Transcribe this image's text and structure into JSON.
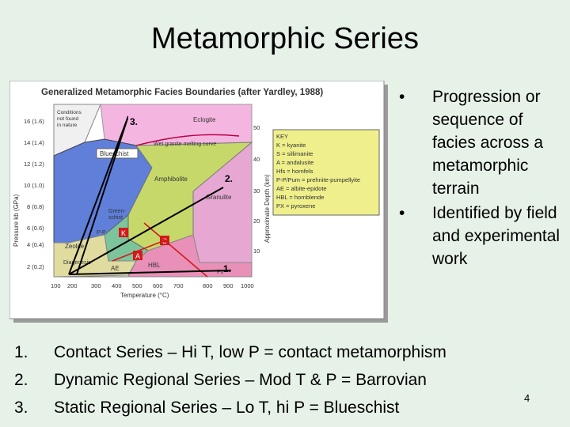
{
  "slide": {
    "title": "Metamorphic Series",
    "page_number": "4"
  },
  "bullets": [
    "Progression or sequence of facies across a metamorphic terrain",
    "Identified by field and experimental work"
  ],
  "series_list": [
    {
      "num": "1.",
      "text": "Contact Series – Hi T, low P = contact metamorphism"
    },
    {
      "num": "2.",
      "text": "Dynamic Regional Series – Mod T & P = Barrovian"
    },
    {
      "num": "3.",
      "text": "Static Regional Series – Lo T, hi P = Blueschist"
    }
  ],
  "diagram": {
    "title": "Generalized Metamorphic Facies Boundaries (after Yardley, 1988)",
    "y_axis_left": "Pressure kb (GPa)",
    "y_axis_right": "Approximate Depth (km)",
    "x_axis": "Temperature (°C)",
    "x_ticks": [
      "100",
      "200",
      "300",
      "400",
      "500",
      "600",
      "700",
      "800",
      "900",
      "1000"
    ],
    "y_ticks": [
      "2 (0.2)",
      "4 (0.4)",
      "6 (0.6)",
      "8 (0.8)",
      "10 (1.0)",
      "12 (1.2)",
      "14 (1.4)",
      "16 (1.6)"
    ],
    "depth_ticks": [
      "10",
      "20",
      "30",
      "40",
      "50"
    ],
    "facies": {
      "conditions": "Conditions not found in nature",
      "eclogite": "Eclogite",
      "wet_granite": "Wet granite melting curve",
      "blueschist": "Blueschist",
      "amphibolite": "Amphibolite",
      "granulite": "Granulite",
      "greenschist": "Green- schist",
      "pp": "P-P",
      "zeolite": "Zeolite",
      "diagenesis": "Diagenesis",
      "ae": "AE",
      "hbl": "HBL",
      "px": "Px"
    },
    "series_markers": [
      "1.",
      "2.",
      "3."
    ],
    "key": {
      "title": "KEY",
      "lines": [
        "K = kyanite",
        "S = sillimanite",
        "A = andalusite",
        "Hfs = hornfels",
        "P-P/Pum = prehnite-pumpellyite",
        "AE = albite-epidote",
        "HBL = hornblende",
        "PX = pyroxene"
      ]
    },
    "colors": {
      "panel": "#ffffff",
      "eclogite": "#f4b6e0",
      "blueschist": "#5f7fd9",
      "amphibolite": "#c6d86a",
      "granulite": "#e6a8d2",
      "greenschist": "#7cc49c",
      "zeolite": "#e0dca0",
      "contact": "#e890b8",
      "series_line": "#d11a1a",
      "key_bg": "#efef8c"
    }
  }
}
